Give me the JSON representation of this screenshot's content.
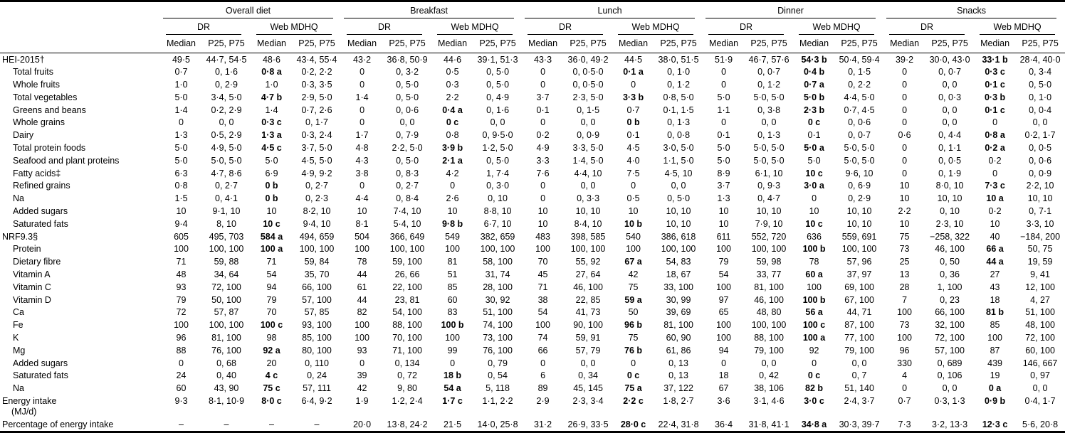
{
  "table": {
    "meal_groups": [
      "Overall diet",
      "Breakfast",
      "Lunch",
      "Dinner",
      "Snacks"
    ],
    "method_groups": [
      "DR",
      "Web MDHQ"
    ],
    "stat_headers": [
      "Median",
      "P25, P75"
    ],
    "rows": [
      {
        "label": "HEI-2015†",
        "indent": 0,
        "cells": [
          "49·5",
          "44·7, 54·5",
          "48·6",
          "43·4, 55·4",
          "43·2",
          "36·8, 50·9",
          "44·6",
          "39·1, 51·3",
          "43·3",
          "36·0, 49·2",
          "44·5",
          "38·0, 51·5",
          "51·9",
          "46·7, 57·6",
          {
            "v": "54·3 b",
            "b": true
          },
          "50·4, 59·4",
          "39·2",
          "30·0, 43·0",
          {
            "v": "33·1 b",
            "b": true
          },
          "28·4, 40·0"
        ]
      },
      {
        "label": "Total fruits",
        "indent": 1,
        "cells": [
          "0·7",
          "0, 1·6",
          {
            "v": "0·8 a",
            "b": true
          },
          "0·2, 2·2",
          "0",
          "0, 3·2",
          "0·5",
          "0, 5·0",
          "0",
          "0, 0·5·0",
          {
            "v": "0·1 a",
            "b": true
          },
          "0, 1·0",
          "0",
          "0, 0·7",
          {
            "v": "0·4 b",
            "b": true
          },
          "0, 1·5",
          "0",
          "0, 0·7",
          {
            "v": "0·3 c",
            "b": true
          },
          "0, 3·4"
        ]
      },
      {
        "label": "Whole fruits",
        "indent": 1,
        "cells": [
          "1·0",
          "0, 2·9",
          "1·0",
          "0·3, 3·5",
          "0",
          "0, 5·0",
          "0·3",
          "0, 5·0",
          "0",
          "0, 0·5·0",
          "0",
          "0, 1·2",
          "0",
          "0, 1·2",
          {
            "v": "0·7 a",
            "b": true
          },
          "0, 2·2",
          "0",
          "0, 0",
          {
            "v": "0·1 c",
            "b": true
          },
          "0, 5·0"
        ]
      },
      {
        "label": "Total vegetables",
        "indent": 1,
        "cells": [
          "5·0",
          "3·4, 5·0",
          {
            "v": "4·7 b",
            "b": true
          },
          "2·9, 5·0",
          "1·4",
          "0, 5·0",
          "2·2",
          "0, 4·9",
          "3·7",
          "2·3, 5·0",
          {
            "v": "3·3 b",
            "b": true
          },
          "0·8, 5·0",
          "5·0",
          "5·0, 5·0",
          {
            "v": "5·0 b",
            "b": true
          },
          "4·4, 5·0",
          "0",
          "0, 0·3",
          {
            "v": "0·3 b",
            "b": true
          },
          "0, 1·0"
        ]
      },
      {
        "label": "Greens and beans",
        "indent": 1,
        "cells": [
          "1·4",
          "0·2, 2·9",
          "1·4",
          "0·7, 2·6",
          "0",
          "0, 0·6",
          {
            "v": "0·4 a",
            "b": true
          },
          "0, 1·6",
          "0·1",
          "0, 1·5",
          "0·7",
          "0·1, 1·5",
          "1·1",
          "0, 3·8",
          {
            "v": "2·3 b",
            "b": true
          },
          "0·7, 4·5",
          "0",
          "0, 0",
          {
            "v": "0·1 c",
            "b": true
          },
          "0, 0·4"
        ]
      },
      {
        "label": "Whole grains",
        "indent": 1,
        "cells": [
          "0",
          "0, 0",
          {
            "v": "0·3 c",
            "b": true
          },
          "0, 1·7",
          "0",
          "0, 0",
          {
            "v": "0 c",
            "b": true
          },
          "0, 0",
          "0",
          "0, 0",
          {
            "v": "0 b",
            "b": true
          },
          "0, 1·3",
          "0",
          "0, 0",
          {
            "v": "0 c",
            "b": true
          },
          "0, 0·6",
          "0",
          "0, 0",
          "0",
          "0, 0"
        ]
      },
      {
        "label": "Dairy",
        "indent": 1,
        "cells": [
          "1·3",
          "0·5, 2·9",
          {
            "v": "1·3 a",
            "b": true
          },
          "0·3, 2·4",
          "1·7",
          "0, 7·9",
          "0·8",
          "0, 9·5·0",
          "0·2",
          "0, 0·9",
          "0·1",
          "0, 0·8",
          "0·1",
          "0, 1·3",
          "0·1",
          "0, 0·7",
          "0·6",
          "0, 4·4",
          {
            "v": "0·8 a",
            "b": true
          },
          "0·2, 1·7"
        ]
      },
      {
        "label": "Total protein foods",
        "indent": 1,
        "cells": [
          "5·0",
          "4·9, 5·0",
          {
            "v": "4·5 c",
            "b": true
          },
          "3·7, 5·0",
          "4·8",
          "2·2, 5·0",
          {
            "v": "3·9 b",
            "b": true
          },
          "1·2, 5·0",
          "4·9",
          "3·3, 5·0",
          "4·5",
          "3·0, 5·0",
          "5·0",
          "5·0, 5·0",
          {
            "v": "5·0 a",
            "b": true
          },
          "5·0, 5·0",
          "0",
          "0, 1·1",
          {
            "v": "0·2 a",
            "b": true
          },
          "0, 0·5"
        ]
      },
      {
        "label": "Seafood and plant proteins",
        "indent": 1,
        "cells": [
          "5·0",
          "5·0, 5·0",
          "5·0",
          "4·5, 5·0",
          "4·3",
          "0, 5·0",
          {
            "v": "2·1 a",
            "b": true
          },
          "0, 5·0",
          "3·3",
          "1·4, 5·0",
          "4·0",
          "1·1, 5·0",
          "5·0",
          "5·0, 5·0",
          "5·0",
          "5·0, 5·0",
          "0",
          "0, 0·5",
          "0·2",
          "0, 0·6"
        ]
      },
      {
        "label": "Fatty acids‡",
        "indent": 1,
        "cells": [
          "6·3",
          "4·7, 8·6",
          "6·9",
          "4·9, 9·2",
          "3·8",
          "0, 8·3",
          "4·2",
          "1, 7·4",
          "7·6",
          "4·4, 10",
          "7·5",
          "4·5, 10",
          "8·9",
          "6·1, 10",
          {
            "v": "10 c",
            "b": true
          },
          "9·6, 10",
          "0",
          "0, 1·9",
          "0",
          "0, 0·9"
        ]
      },
      {
        "label": "Refined grains",
        "indent": 1,
        "cells": [
          "0·8",
          "0, 2·7",
          {
            "v": "0 b",
            "b": true
          },
          "0, 2·7",
          "0",
          "0, 2·7",
          "0",
          "0, 3·0",
          "0",
          "0, 0",
          "0",
          "0, 0",
          "3·7",
          "0, 9·3",
          {
            "v": "3·0 a",
            "b": true
          },
          "0, 6·9",
          "10",
          "8·0, 10",
          {
            "v": "7·3 c",
            "b": true
          },
          "2·2, 10"
        ]
      },
      {
        "label": "Na",
        "indent": 1,
        "cells": [
          "1·5",
          "0, 4·1",
          {
            "v": "0 b",
            "b": true
          },
          "0, 2·3",
          "4·4",
          "0, 8·4",
          "2·6",
          "0, 10",
          "0",
          "0, 3·3",
          "0·5",
          "0, 5·0",
          "1·3",
          "0, 4·7",
          "0",
          "0, 2·9",
          "10",
          "10, 10",
          {
            "v": "10 a",
            "b": true
          },
          "10, 10"
        ]
      },
      {
        "label": "Added sugars",
        "indent": 1,
        "cells": [
          "10",
          "9·1, 10",
          "10",
          "8·2, 10",
          "10",
          "7·4, 10",
          "10",
          "8·8, 10",
          "10",
          "10, 10",
          "10",
          "10, 10",
          "10",
          "10, 10",
          "10",
          "10, 10",
          "2·2",
          "0, 10",
          "0·2",
          "0, 7·1"
        ]
      },
      {
        "label": "Saturated fats",
        "indent": 1,
        "cells": [
          "9·4",
          "8, 10",
          {
            "v": "10 c",
            "b": true
          },
          "9·4, 10",
          "8·1",
          "5·4, 10",
          {
            "v": "9·8 b",
            "b": true
          },
          "6·7, 10",
          "10",
          "8·4, 10",
          {
            "v": "10 b",
            "b": true
          },
          "10, 10",
          "10",
          "7·9, 10",
          {
            "v": "10 c",
            "b": true
          },
          "10, 10",
          "10",
          "2·3, 10",
          "10",
          "3·3, 10"
        ]
      },
      {
        "label": "NRF9.3§",
        "indent": 0,
        "cells": [
          "605",
          "495, 703",
          {
            "v": "584 a",
            "b": true
          },
          "494, 659",
          "504",
          "366, 649",
          "549",
          "382, 659",
          "483",
          "398, 585",
          "540",
          "386, 618",
          "611",
          "552, 720",
          "636",
          "559, 691",
          "75",
          "−258, 322",
          "40",
          "−184, 200"
        ]
      },
      {
        "label": "Protein",
        "indent": 1,
        "cells": [
          "100",
          "100, 100",
          {
            "v": "100 a",
            "b": true
          },
          "100, 100",
          "100",
          "100, 100",
          "100",
          "100, 100",
          "100",
          "100, 100",
          "100",
          "100, 100",
          "100",
          "100, 100",
          {
            "v": "100 b",
            "b": true
          },
          "100, 100",
          "73",
          "46, 100",
          {
            "v": "66 a",
            "b": true
          },
          "50, 75"
        ]
      },
      {
        "label": "Dietary fibre",
        "indent": 1,
        "cells": [
          "71",
          "59, 88",
          "71",
          "59, 84",
          "78",
          "59, 100",
          "81",
          "58, 100",
          "70",
          "55, 92",
          {
            "v": "67 a",
            "b": true
          },
          "54, 83",
          "79",
          "59, 98",
          "78",
          "57, 96",
          "25",
          "0, 50",
          {
            "v": "44 a",
            "b": true
          },
          "19, 59"
        ]
      },
      {
        "label": "Vitamin A",
        "indent": 1,
        "cells": [
          "48",
          "34, 64",
          "54",
          "35, 70",
          "44",
          "26, 66",
          "51",
          "31, 74",
          "45",
          "27, 64",
          "42",
          "18, 67",
          "54",
          "33, 77",
          {
            "v": "60 a",
            "b": true
          },
          "37, 97",
          "13",
          "0, 36",
          "27",
          "9, 41"
        ]
      },
      {
        "label": "Vitamin C",
        "indent": 1,
        "cells": [
          "93",
          "72, 100",
          "94",
          "66, 100",
          "61",
          "22, 100",
          "85",
          "28, 100",
          "71",
          "46, 100",
          "75",
          "33, 100",
          "100",
          "81, 100",
          "100",
          "69, 100",
          "28",
          "1, 100",
          "43",
          "12, 100"
        ]
      },
      {
        "label": "Vitamin D",
        "indent": 1,
        "cells": [
          "79",
          "50, 100",
          "79",
          "57, 100",
          "44",
          "23, 81",
          "60",
          "30, 92",
          "38",
          "22, 85",
          {
            "v": "59 a",
            "b": true
          },
          "30, 99",
          "97",
          "46, 100",
          {
            "v": "100 b",
            "b": true
          },
          "67, 100",
          "7",
          "0, 23",
          "18",
          "4, 27"
        ]
      },
      {
        "label": "Ca",
        "indent": 1,
        "cells": [
          "72",
          "57, 87",
          "70",
          "57, 85",
          "82",
          "54, 100",
          "83",
          "51, 100",
          "54",
          "41, 73",
          "50",
          "39, 69",
          "65",
          "48, 80",
          {
            "v": "56 a",
            "b": true
          },
          "44, 71",
          "100",
          "66, 100",
          {
            "v": "81 b",
            "b": true
          },
          "51, 100"
        ]
      },
      {
        "label": "Fe",
        "indent": 1,
        "cells": [
          "100",
          "100, 100",
          {
            "v": "100 c",
            "b": true
          },
          "93, 100",
          "100",
          "88, 100",
          {
            "v": "100 b",
            "b": true
          },
          "74, 100",
          "100",
          "90, 100",
          {
            "v": "96 b",
            "b": true
          },
          "81, 100",
          "100",
          "100, 100",
          {
            "v": "100 c",
            "b": true
          },
          "87, 100",
          "73",
          "32, 100",
          "85",
          "48, 100"
        ]
      },
      {
        "label": "K",
        "indent": 1,
        "cells": [
          "96",
          "81, 100",
          "98",
          "85, 100",
          "100",
          "70, 100",
          "100",
          "73, 100",
          "74",
          "59, 91",
          "75",
          "60, 90",
          "100",
          "88, 100",
          {
            "v": "100 a",
            "b": true
          },
          "77, 100",
          "100",
          "72, 100",
          "100",
          "72, 100"
        ]
      },
      {
        "label": "Mg",
        "indent": 1,
        "cells": [
          "88",
          "76, 100",
          {
            "v": "92 a",
            "b": true
          },
          "80, 100",
          "93",
          "71, 100",
          "99",
          "76, 100",
          "66",
          "57, 79",
          {
            "v": "76 b",
            "b": true
          },
          "61, 86",
          "94",
          "79, 100",
          "92",
          "79, 100",
          "96",
          "57, 100",
          "87",
          "60, 100"
        ]
      },
      {
        "label": "Added sugars",
        "indent": 1,
        "cells": [
          "0",
          "0, 68",
          "20",
          "0, 110",
          "0",
          "0, 134",
          "0",
          "0, 79",
          "0",
          "0, 0",
          "0",
          "0, 13",
          "0",
          "0, 0",
          "0",
          "0, 0",
          "330",
          "0, 689",
          "439",
          "146, 667"
        ]
      },
      {
        "label": "Saturated fats",
        "indent": 1,
        "cells": [
          "24",
          "0, 40",
          {
            "v": "4 c",
            "b": true
          },
          "0, 24",
          "39",
          "0, 72",
          {
            "v": "18 b",
            "b": true
          },
          "0, 54",
          "6",
          "0, 34",
          {
            "v": "0 c",
            "b": true
          },
          "0, 13",
          "18",
          "0, 42",
          {
            "v": "0 c",
            "b": true
          },
          "0, 7",
          "4",
          "0, 106",
          "19",
          "0, 97"
        ]
      },
      {
        "label": "Na",
        "indent": 1,
        "cells": [
          "60",
          "43, 90",
          {
            "v": "75 c",
            "b": true
          },
          "57, 111",
          "42",
          "9, 80",
          {
            "v": "54 a",
            "b": true
          },
          "5, 118",
          "89",
          "45, 145",
          {
            "v": "75 a",
            "b": true
          },
          "37, 122",
          "67",
          "38, 106",
          {
            "v": "82 b",
            "b": true
          },
          "51, 140",
          "0",
          "0, 0",
          {
            "v": "0 a",
            "b": true
          },
          "0, 0"
        ]
      },
      {
        "label": "Energy intake",
        "label2": "(MJ/d)",
        "indent": 0,
        "cells": [
          "9·3",
          "8·1, 10·9",
          {
            "v": "8·0 c",
            "b": true
          },
          "6·4, 9·2",
          "1·9",
          "1·2, 2·4",
          {
            "v": "1·7 c",
            "b": true
          },
          "1·1, 2·2",
          "2·9",
          "2·3, 3·4",
          {
            "v": "2·2 c",
            "b": true
          },
          "1·8, 2·7",
          "3·6",
          "3·1, 4·6",
          {
            "v": "3·0 c",
            "b": true
          },
          "2·4, 3·7",
          "0·7",
          "0·3, 1·3",
          {
            "v": "0·9 b",
            "b": true
          },
          "0·4, 1·7"
        ]
      },
      {
        "label": "Percentage of energy intake",
        "indent": 0,
        "cells": [
          "–",
          "–",
          "–",
          "–",
          "20·0",
          "13·8, 24·2",
          "21·5",
          "14·0, 25·8",
          "31·2",
          "26·9, 33·5",
          {
            "v": "28·0 c",
            "b": true
          },
          "22·4, 31·8",
          "36·4",
          "31·8, 41·1",
          {
            "v": "34·8 a",
            "b": true
          },
          "30·3, 39·7",
          "7·3",
          "3·2, 13·3",
          {
            "v": "12·3 c",
            "b": true
          },
          "5·6, 20·8"
        ]
      }
    ]
  }
}
